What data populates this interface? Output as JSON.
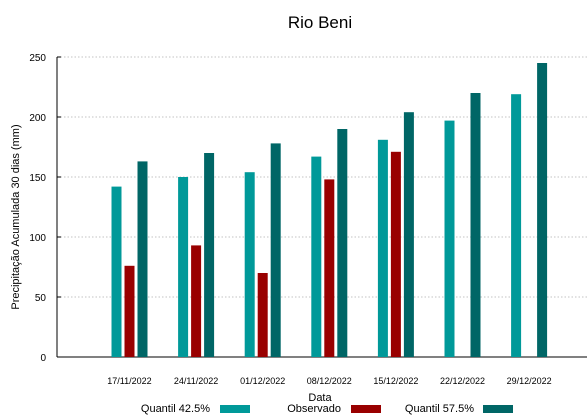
{
  "chart_data": {
    "type": "bar",
    "title": "Rio Beni",
    "xlabel": "Data",
    "ylabel": "Precipitação Acumulada 30 dias (mm)",
    "ylim": [
      0,
      250
    ],
    "yticks": [
      "0",
      "50",
      "100",
      "150",
      "200",
      "250"
    ],
    "grid": true,
    "legend_position": "bottom",
    "categories": [
      "17/11/2022",
      "24/11/2022",
      "01/12/2022",
      "08/12/2022",
      "15/12/2022",
      "22/12/2022",
      "29/12/2022"
    ],
    "series": [
      {
        "name": "Quantil 42.5%",
        "color": "#009999",
        "values": [
          142,
          150,
          154,
          167,
          181,
          197,
          219
        ]
      },
      {
        "name": "Observado",
        "color": "#990000",
        "values": [
          76,
          93,
          70,
          148,
          171,
          null,
          null
        ]
      },
      {
        "name": "Quantil 57.5%",
        "color": "#006666",
        "values": [
          163,
          170,
          178,
          190,
          204,
          220,
          245
        ]
      }
    ]
  }
}
